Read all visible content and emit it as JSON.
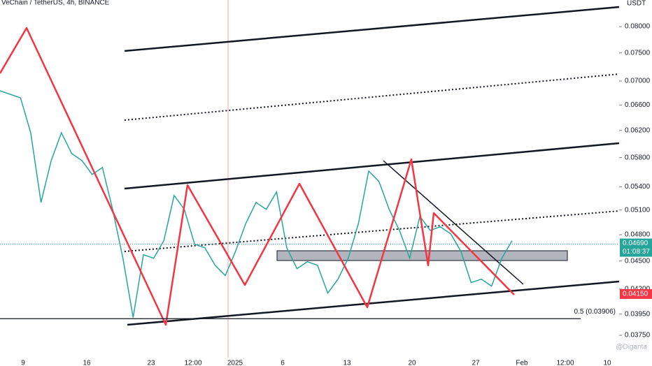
{
  "chart_data": {
    "type": "line",
    "title": "VeChain / TetherUS, 4h, BINANCE",
    "currency": "USDT",
    "log": true,
    "color": "#26a69a",
    "values": [
      0.06834,
      0.06776,
      0.06717,
      0.06166,
      0.05196,
      0.05758,
      0.06166,
      0.05858,
      0.05758,
      0.05565,
      0.05661,
      0.05108,
      0.04531,
      0.03918,
      0.0457,
      0.04531,
      0.0473,
      0.05286,
      0.05108,
      0.04689,
      0.04649,
      0.04454,
      0.04342,
      0.04609,
      0.04936,
      0.05196,
      0.05108,
      0.05331,
      0.04649,
      0.04416,
      0.04492,
      0.04454,
      0.04159,
      0.04304,
      0.04531,
      0.04936,
      0.05612,
      0.0547,
      0.05108,
      0.04852,
      0.04531,
      0.05022,
      0.04852,
      0.04894,
      0.0481,
      0.04609,
      0.04268,
      0.04304,
      0.04231,
      0.04531,
      0.0473
    ],
    "x_labels": [
      "9",
      "16",
      "23",
      "12:00",
      "2025",
      "6",
      "13",
      "20",
      "27",
      "Feb",
      "12:00",
      "10"
    ],
    "ylim": [
      0.0355,
      0.0854
    ],
    "yticks": [
      {
        "value": 0.08,
        "label": "0.08000"
      },
      {
        "value": 0.075,
        "label": "0.07500"
      },
      {
        "value": 0.07,
        "label": "0.07000"
      },
      {
        "value": 0.066,
        "label": "0.06600"
      },
      {
        "value": 0.062,
        "label": "0.06200"
      },
      {
        "value": 0.058,
        "label": "0.05800"
      },
      {
        "value": 0.054,
        "label": "0.05400"
      },
      {
        "value": 0.051,
        "label": "0.05100"
      },
      {
        "value": 0.048,
        "label": "0.04800"
      },
      {
        "value": 0.045,
        "label": "0.04500"
      },
      {
        "value": 0.042,
        "label": "0.04200"
      },
      {
        "value": 0.0395,
        "label": "0.03950"
      },
      {
        "value": 0.0375,
        "label": "0.03750"
      }
    ],
    "current_price": {
      "value": 0.0469,
      "label": "0.04690",
      "countdown": "01:08:37",
      "color": "#26a69a"
    },
    "marker_price": {
      "value": 0.0415,
      "label": "0.04150",
      "color": "#f23645"
    },
    "fib_level": {
      "value": 0.03906,
      "label": "0.5 (0.03906)"
    },
    "watermark": "@Diganta"
  }
}
